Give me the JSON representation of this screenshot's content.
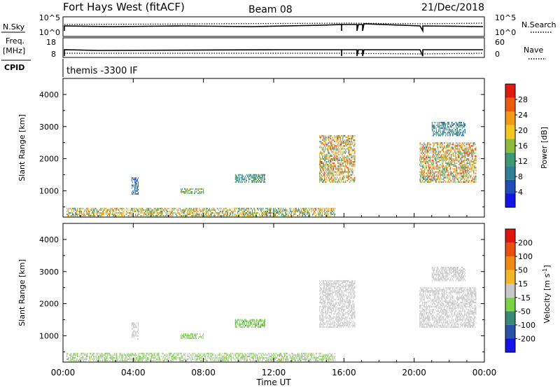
{
  "header": {
    "station": "Fort Hays West (fitACF)",
    "beam": "Beam 08",
    "date": "21/Dec/2018",
    "cpid_label": "CPID",
    "cpid_text": "themis -3300 IF"
  },
  "strip_panels": [
    {
      "left_label": "N.Sky",
      "left_ticks": [
        "10^5",
        "10^0"
      ],
      "right_label": "N.Search",
      "right_ticks": [
        "10^5",
        "10^0"
      ]
    },
    {
      "left_label": "Freq.",
      "left_unit": "[MHz]",
      "left_ticks": [
        "18",
        "8"
      ],
      "right_label": "Nave",
      "right_ticks": [
        "60",
        "0"
      ]
    }
  ],
  "x_axis": {
    "label": "Time UT",
    "ticks": [
      "00:00",
      "04:00",
      "08:00",
      "12:00",
      "16:00",
      "20:00",
      "00:00"
    ],
    "range_hours": [
      0,
      24
    ]
  },
  "colors": {
    "power": [
      "#1414e6",
      "#1e4fb8",
      "#2e7f97",
      "#3e9876",
      "#8cbb3e",
      "#f5c61e",
      "#f39a14",
      "#ec5a10",
      "#e01a10"
    ],
    "velocity": [
      "#1414e6",
      "#2a52a8",
      "#378a76",
      "#7ad244",
      "#c8c8c8",
      "#f0b828",
      "#f08a14",
      "#ec5010",
      "#e01410"
    ]
  },
  "chart_data": [
    {
      "type": "heatmap",
      "title": "Power",
      "ylabel": "Slant Range [km]",
      "xlabel": "",
      "ylim": [
        180,
        4500
      ],
      "y_ticks": [
        1000,
        2000,
        3000,
        4000
      ],
      "colorbar": {
        "label": "Power [dB]",
        "ticks": [
          "4",
          "8",
          "12",
          "16",
          "20",
          "24",
          "28"
        ],
        "range": [
          0,
          32
        ]
      },
      "regions": [
        {
          "t": [
            0.2,
            15.5
          ],
          "r": [
            200,
            450
          ],
          "v": [
            8,
            26
          ]
        },
        {
          "t": [
            3.9,
            4.3
          ],
          "r": [
            880,
            1380
          ],
          "v": [
            4,
            10
          ]
        },
        {
          "t": [
            6.7,
            8.0
          ],
          "r": [
            900,
            1060
          ],
          "v": [
            8,
            20
          ]
        },
        {
          "t": [
            9.8,
            11.5
          ],
          "r": [
            1250,
            1480
          ],
          "v": [
            8,
            16
          ]
        },
        {
          "t": [
            14.6,
            16.6
          ],
          "r": [
            1250,
            2700
          ],
          "v": [
            8,
            30
          ]
        },
        {
          "t": [
            20.3,
            23.5
          ],
          "r": [
            1250,
            2500
          ],
          "v": [
            8,
            30
          ]
        },
        {
          "t": [
            21.0,
            22.9
          ],
          "r": [
            2700,
            3150
          ],
          "v": [
            6,
            14
          ]
        }
      ]
    },
    {
      "type": "heatmap",
      "title": "Velocity",
      "ylabel": "Slant Range [km]",
      "xlabel": "Time UT",
      "ylim": [
        180,
        4500
      ],
      "y_ticks": [
        1000,
        2000,
        3000,
        4000
      ],
      "colorbar": {
        "label": "Velocity [m s^-1]",
        "ticks": [
          "200",
          "100",
          "50",
          "15",
          "-15",
          "-50",
          "-100",
          "-200"
        ],
        "range": [
          -250,
          250
        ]
      },
      "regions": [
        {
          "t": [
            0.2,
            15.5
          ],
          "r": [
            200,
            450
          ],
          "v": [
            -80,
            30
          ]
        },
        {
          "t": [
            3.9,
            4.3
          ],
          "r": [
            880,
            1380
          ],
          "v": [
            -20,
            10
          ]
        },
        {
          "t": [
            6.7,
            8.0
          ],
          "r": [
            900,
            1060
          ],
          "v": [
            -80,
            -10
          ]
        },
        {
          "t": [
            9.8,
            11.5
          ],
          "r": [
            1250,
            1480
          ],
          "v": [
            -90,
            -30
          ]
        },
        {
          "t": [
            14.6,
            16.6
          ],
          "r": [
            1250,
            2700
          ],
          "v": [
            -20,
            20
          ]
        },
        {
          "t": [
            20.3,
            23.5
          ],
          "r": [
            1250,
            2500
          ],
          "v": [
            -20,
            20
          ]
        },
        {
          "t": [
            21.0,
            22.9
          ],
          "r": [
            2700,
            3150
          ],
          "v": [
            -15,
            10
          ]
        }
      ]
    }
  ]
}
